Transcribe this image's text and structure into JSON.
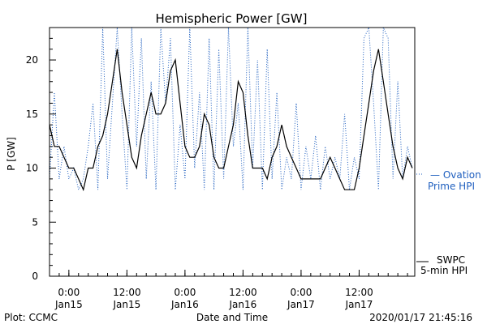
{
  "chart_data": {
    "type": "line",
    "title": "Hemispheric Power [GW]",
    "ylabel": "P [GW]",
    "xlabel": "Date and Time",
    "ylim": [
      0,
      23
    ],
    "xlim": [
      "2020-01-14T20:00",
      "2020-01-17T23:30"
    ],
    "yticks": [
      0,
      5,
      10,
      15,
      20
    ],
    "xticks": [
      {
        "x": "2020-01-15T00:00",
        "line1": "0:00",
        "line2": "Jan15"
      },
      {
        "x": "2020-01-15T12:00",
        "line1": "12:00",
        "line2": "Jan15"
      },
      {
        "x": "2020-01-16T00:00",
        "line1": "0:00",
        "line2": "Jan16"
      },
      {
        "x": "2020-01-16T12:00",
        "line1": "12:00",
        "line2": "Jan16"
      },
      {
        "x": "2020-01-17T00:00",
        "line1": "0:00",
        "line2": "Jan17"
      },
      {
        "x": "2020-01-17T12:00",
        "line1": "12:00",
        "line2": "Jan17"
      }
    ],
    "series": [
      {
        "name": "SWPC 5-min HPI",
        "style": "solid",
        "color": "#000000",
        "x": [
          "2020-01-14T20:00",
          "2020-01-14T21:00",
          "2020-01-14T22:00",
          "2020-01-14T23:00",
          "2020-01-15T00:00",
          "2020-01-15T01:00",
          "2020-01-15T02:00",
          "2020-01-15T03:00",
          "2020-01-15T04:00",
          "2020-01-15T05:00",
          "2020-01-15T06:00",
          "2020-01-15T07:00",
          "2020-01-15T08:00",
          "2020-01-15T09:00",
          "2020-01-15T10:00",
          "2020-01-15T11:00",
          "2020-01-15T12:00",
          "2020-01-15T13:00",
          "2020-01-15T14:00",
          "2020-01-15T15:00",
          "2020-01-15T16:00",
          "2020-01-15T17:00",
          "2020-01-15T18:00",
          "2020-01-15T19:00",
          "2020-01-15T20:00",
          "2020-01-15T21:00",
          "2020-01-15T22:00",
          "2020-01-15T23:00",
          "2020-01-16T00:00",
          "2020-01-16T01:00",
          "2020-01-16T02:00",
          "2020-01-16T03:00",
          "2020-01-16T04:00",
          "2020-01-16T05:00",
          "2020-01-16T06:00",
          "2020-01-16T07:00",
          "2020-01-16T08:00",
          "2020-01-16T09:00",
          "2020-01-16T10:00",
          "2020-01-16T11:00",
          "2020-01-16T12:00",
          "2020-01-16T13:00",
          "2020-01-16T14:00",
          "2020-01-16T15:00",
          "2020-01-16T16:00",
          "2020-01-16T17:00",
          "2020-01-16T18:00",
          "2020-01-16T19:00",
          "2020-01-16T20:00",
          "2020-01-16T21:00",
          "2020-01-16T22:00",
          "2020-01-16T23:00",
          "2020-01-17T00:00",
          "2020-01-17T01:00",
          "2020-01-17T02:00",
          "2020-01-17T03:00",
          "2020-01-17T04:00",
          "2020-01-17T05:00",
          "2020-01-17T06:00",
          "2020-01-17T07:00",
          "2020-01-17T08:00",
          "2020-01-17T09:00",
          "2020-01-17T10:00",
          "2020-01-17T11:00",
          "2020-01-17T12:00",
          "2020-01-17T13:00",
          "2020-01-17T14:00",
          "2020-01-17T15:00",
          "2020-01-17T16:00",
          "2020-01-17T17:00",
          "2020-01-17T18:00",
          "2020-01-17T19:00",
          "2020-01-17T20:00",
          "2020-01-17T21:00",
          "2020-01-17T22:00",
          "2020-01-17T23:00"
        ],
        "values": [
          14,
          12,
          12,
          11,
          10,
          10,
          9,
          8,
          10,
          10,
          12,
          13,
          15,
          18,
          21,
          17,
          14,
          11,
          10,
          13,
          15,
          17,
          15,
          15,
          16,
          19,
          20,
          16,
          12,
          11,
          11,
          12,
          15,
          14,
          11,
          10,
          10,
          12,
          14,
          18,
          17,
          13,
          10,
          10,
          10,
          9,
          11,
          12,
          14,
          12,
          11,
          10,
          9,
          9,
          9,
          9,
          9,
          10,
          11,
          10,
          9,
          8,
          8,
          8,
          10,
          13,
          16,
          19,
          21,
          18,
          15,
          12,
          10,
          9,
          11,
          10
        ]
      },
      {
        "name": "Ovation Prime HPI",
        "style": "dotted",
        "color": "#1f5fbf",
        "x": [
          "2020-01-14T20:00",
          "2020-01-14T21:00",
          "2020-01-14T22:00",
          "2020-01-14T23:00",
          "2020-01-15T00:00",
          "2020-01-15T01:00",
          "2020-01-15T02:00",
          "2020-01-15T03:00",
          "2020-01-15T04:00",
          "2020-01-15T05:00",
          "2020-01-15T06:00",
          "2020-01-15T07:00",
          "2020-01-15T08:00",
          "2020-01-15T09:00",
          "2020-01-15T10:00",
          "2020-01-15T11:00",
          "2020-01-15T12:00",
          "2020-01-15T13:00",
          "2020-01-15T14:00",
          "2020-01-15T15:00",
          "2020-01-15T16:00",
          "2020-01-15T17:00",
          "2020-01-15T18:00",
          "2020-01-15T19:00",
          "2020-01-15T20:00",
          "2020-01-15T21:00",
          "2020-01-15T22:00",
          "2020-01-15T23:00",
          "2020-01-16T00:00",
          "2020-01-16T01:00",
          "2020-01-16T02:00",
          "2020-01-16T03:00",
          "2020-01-16T04:00",
          "2020-01-16T05:00",
          "2020-01-16T06:00",
          "2020-01-16T07:00",
          "2020-01-16T08:00",
          "2020-01-16T09:00",
          "2020-01-16T10:00",
          "2020-01-16T11:00",
          "2020-01-16T12:00",
          "2020-01-16T13:00",
          "2020-01-16T14:00",
          "2020-01-16T15:00",
          "2020-01-16T16:00",
          "2020-01-16T17:00",
          "2020-01-16T18:00",
          "2020-01-16T19:00",
          "2020-01-16T20:00",
          "2020-01-16T21:00",
          "2020-01-16T22:00",
          "2020-01-16T23:00",
          "2020-01-17T00:00",
          "2020-01-17T01:00",
          "2020-01-17T02:00",
          "2020-01-17T03:00",
          "2020-01-17T04:00",
          "2020-01-17T05:00",
          "2020-01-17T06:00",
          "2020-01-17T07:00",
          "2020-01-17T08:00",
          "2020-01-17T09:00",
          "2020-01-17T10:00",
          "2020-01-17T11:00",
          "2020-01-17T12:00",
          "2020-01-17T13:00",
          "2020-01-17T14:00",
          "2020-01-17T15:00",
          "2020-01-17T16:00",
          "2020-01-17T17:00",
          "2020-01-17T18:00",
          "2020-01-17T19:00",
          "2020-01-17T20:00",
          "2020-01-17T21:00",
          "2020-01-17T22:00",
          "2020-01-17T23:00"
        ],
        "values": [
          9,
          17,
          9,
          12,
          9,
          10,
          8,
          9,
          12,
          16,
          8,
          23,
          9,
          16,
          23,
          15,
          8,
          23,
          12,
          22,
          9,
          18,
          8,
          23,
          16,
          22,
          8,
          14,
          9,
          23,
          10,
          17,
          8,
          22,
          8,
          21,
          9,
          23,
          12,
          16,
          8,
          23,
          10,
          20,
          8,
          21,
          9,
          17,
          8,
          11,
          9,
          16,
          8,
          12,
          9,
          13,
          8,
          12,
          9,
          11,
          9,
          15,
          8,
          11,
          9,
          22,
          23,
          16,
          8,
          23,
          22,
          9,
          18,
          9,
          12,
          10
        ]
      }
    ],
    "legend": [
      {
        "line1": "— Ovation",
        "line2": "Prime HPI",
        "color": "#1f5fbf"
      },
      {
        "line1": "SWPC",
        "line2": "5-min HPI",
        "color": "#000000"
      }
    ],
    "footer": {
      "left": "Plot: CCMC",
      "center": "Date and Time",
      "right": "2020/01/17 21:45:16"
    }
  }
}
